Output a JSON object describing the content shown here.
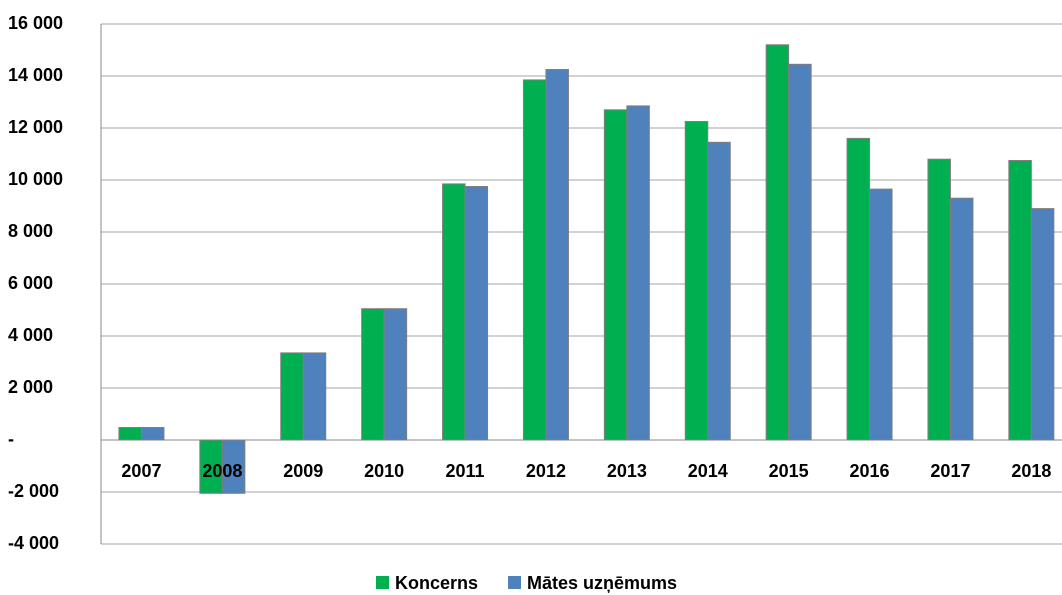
{
  "chart_data": {
    "type": "bar",
    "categories": [
      "2007",
      "2008",
      "2009",
      "2010",
      "2011",
      "2012",
      "2013",
      "2014",
      "2015",
      "2016",
      "2017",
      "2018"
    ],
    "series": [
      {
        "name": "Koncerns",
        "color": "#00b050",
        "values": [
          480,
          -2050,
          3350,
          5050,
          9850,
          13850,
          12700,
          12250,
          15200,
          11600,
          10800,
          10750
        ]
      },
      {
        "name": "Mātes uzņēmums",
        "color": "#4f81bd",
        "values": [
          480,
          -2050,
          3350,
          5050,
          9750,
          14250,
          12850,
          11450,
          14450,
          9650,
          9300,
          8900
        ]
      }
    ],
    "ylim": [
      -4000,
      16000
    ],
    "yticks": [
      {
        "value": -4000,
        "label": "-4 000"
      },
      {
        "value": -2000,
        "label": "-2 000"
      },
      {
        "value": 0,
        "label": "-"
      },
      {
        "value": 2000,
        "label": "2 000"
      },
      {
        "value": 4000,
        "label": "4 000"
      },
      {
        "value": 6000,
        "label": "6 000"
      },
      {
        "value": 8000,
        "label": "8 000"
      },
      {
        "value": 10000,
        "label": "10 000"
      },
      {
        "value": 12000,
        "label": "12 000"
      },
      {
        "value": 14000,
        "label": "14 000"
      },
      {
        "value": 16000,
        "label": "16 000"
      }
    ],
    "grid": true,
    "legend": "bottom"
  }
}
